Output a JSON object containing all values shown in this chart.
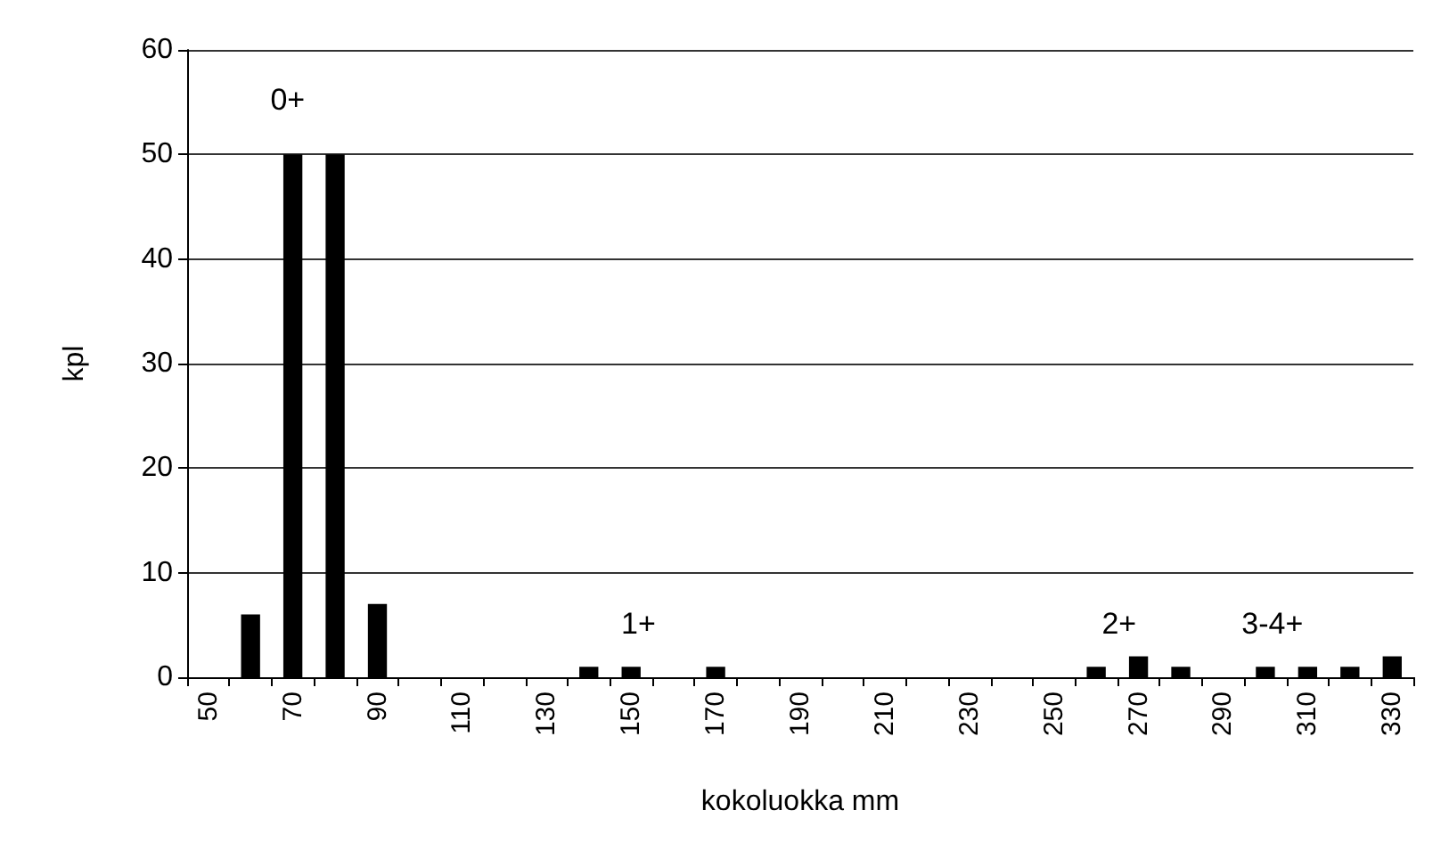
{
  "chart_data": {
    "type": "bar",
    "categories": [
      "50",
      null,
      "70",
      null,
      "90",
      null,
      "110",
      null,
      "130",
      null,
      "150",
      null,
      "170",
      null,
      "190",
      null,
      "210",
      null,
      "230",
      null,
      "250",
      null,
      "270",
      null,
      "290",
      null,
      "310",
      null,
      "330"
    ],
    "values": [
      0,
      6,
      50,
      50,
      7,
      0,
      0,
      0,
      0,
      1,
      1,
      0,
      1,
      0,
      0,
      0,
      0,
      0,
      0,
      0,
      0,
      1,
      2,
      1,
      0,
      1,
      1,
      1,
      2
    ],
    "color": "#000000",
    "xlabel": "kokoluokka mm",
    "ylabel": "kpl",
    "ylim": [
      0,
      60
    ],
    "yticks": [
      0,
      10,
      20,
      30,
      40,
      50,
      60
    ],
    "grid": "y",
    "annotations": [
      "0+",
      "1+",
      "2+",
      "3-4+"
    ]
  }
}
